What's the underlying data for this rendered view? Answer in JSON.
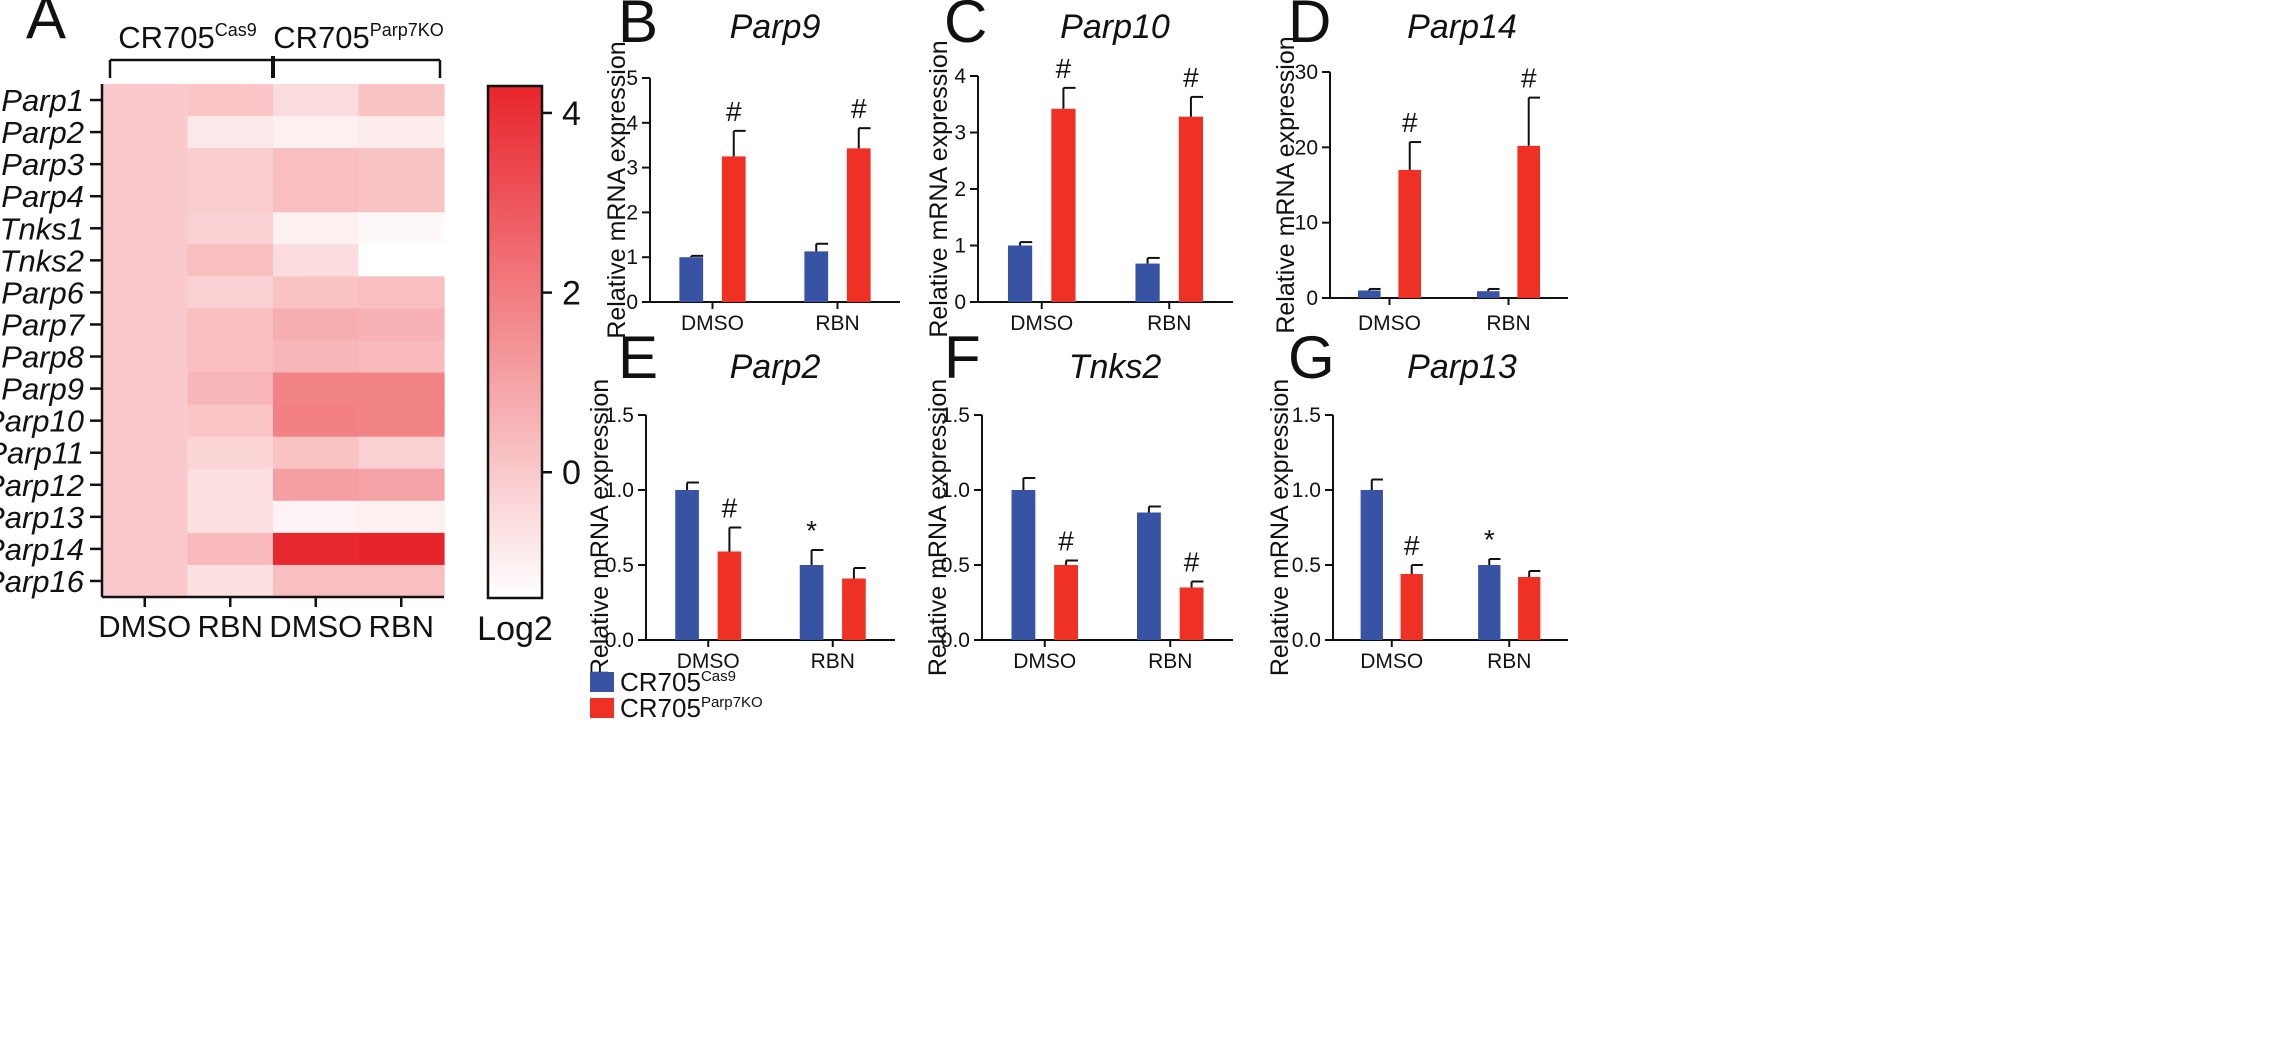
{
  "figure": {
    "colors": {
      "cas9": "#3953a4",
      "ko": "#ee3124",
      "heat_max": "#e8242b"
    }
  },
  "legend": {
    "base": "CR705",
    "sup_cas9": "Cas9",
    "sup_ko": "Parp7KO"
  },
  "chart_data": [
    {
      "type": "heatmap",
      "panel": "A",
      "title": "",
      "group_labels": [
        {
          "base": "CR705",
          "sup": "Cas9"
        },
        {
          "base": "CR705",
          "sup": "Parp7KO"
        }
      ],
      "columns": [
        "DMSO",
        "RBN",
        "DMSO",
        "RBN"
      ],
      "rows": [
        "Parp1",
        "Parp2",
        "Parp3",
        "Parp4",
        "Tnks1",
        "Tnks2",
        "Parp6",
        "Parp7",
        "Parp8",
        "Parp9",
        "Parp10",
        "Parp11",
        "Parp12",
        "Parp13",
        "Parp14",
        "Parp16"
      ],
      "values": [
        [
          0,
          0.1,
          -0.5,
          0.2
        ],
        [
          0,
          -0.8,
          -1.0,
          -0.9
        ],
        [
          0,
          -0.1,
          0.3,
          0.2
        ],
        [
          0,
          -0.1,
          0.3,
          0.2
        ],
        [
          0,
          -0.2,
          -1.0,
          -1.25
        ],
        [
          0,
          0.3,
          -0.5,
          -1.4
        ],
        [
          0,
          -0.2,
          0.2,
          0.3
        ],
        [
          0,
          0.3,
          0.7,
          0.6
        ],
        [
          0,
          0.3,
          0.5,
          0.4
        ],
        [
          0,
          0.5,
          1.8,
          1.8
        ],
        [
          0,
          0.1,
          1.9,
          1.8
        ],
        [
          0,
          -0.3,
          0.2,
          -0.2
        ],
        [
          0,
          -0.6,
          1.1,
          1.0
        ],
        [
          0,
          -0.6,
          -1.1,
          -1.0
        ],
        [
          0,
          0.4,
          4.2,
          4.3
        ],
        [
          0,
          -0.6,
          0.3,
          0.3
        ]
      ],
      "colorbar": {
        "label": "Log2",
        "ticks": [
          0,
          2,
          4
        ],
        "range": [
          -1.4,
          4.3
        ]
      }
    },
    {
      "type": "bar",
      "panel": "B",
      "title": "Parp9",
      "ylabel": "Relative mRNA expression",
      "categories": [
        "DMSO",
        "RBN"
      ],
      "ylim": [
        0,
        5
      ],
      "yticks": [
        "0",
        "1",
        "2",
        "3",
        "4",
        "5"
      ],
      "series": [
        {
          "name": "CR705 Cas9",
          "values": [
            1.0,
            1.13
          ],
          "errors": [
            0.03,
            0.17
          ],
          "marks": [
            "",
            ""
          ]
        },
        {
          "name": "CR705 Parp7KO",
          "values": [
            3.25,
            3.43
          ],
          "errors": [
            0.57,
            0.45
          ],
          "marks": [
            "#",
            "#"
          ]
        }
      ]
    },
    {
      "type": "bar",
      "panel": "C",
      "title": "Parp10",
      "ylabel": "Relative mRNA expression",
      "categories": [
        "DMSO",
        "RBN"
      ],
      "ylim": [
        0,
        4
      ],
      "yticks": [
        "0",
        "1",
        "2",
        "3",
        "4"
      ],
      "series": [
        {
          "name": "CR705 Cas9",
          "values": [
            1.0,
            0.68
          ],
          "errors": [
            0.06,
            0.1
          ],
          "marks": [
            "",
            ""
          ]
        },
        {
          "name": "CR705 Parp7KO",
          "values": [
            3.42,
            3.28
          ],
          "errors": [
            0.37,
            0.35
          ],
          "marks": [
            "#",
            "#"
          ]
        }
      ]
    },
    {
      "type": "bar",
      "panel": "D",
      "title": "Parp14",
      "ylabel": "Relative mRNA expression",
      "categories": [
        "DMSO",
        "RBN"
      ],
      "ylim": [
        0,
        30
      ],
      "yticks": [
        "0",
        "10",
        "20",
        "30"
      ],
      "series": [
        {
          "name": "CR705 Cas9",
          "values": [
            1.0,
            0.9
          ],
          "errors": [
            0.2,
            0.3
          ],
          "marks": [
            "",
            ""
          ]
        },
        {
          "name": "CR705 Parp7KO",
          "values": [
            17.0,
            20.2
          ],
          "errors": [
            3.7,
            6.4
          ],
          "marks": [
            "#",
            "#"
          ]
        }
      ]
    },
    {
      "type": "bar",
      "panel": "E",
      "title": "Parp2",
      "ylabel": "Relative mRNA expression",
      "categories": [
        "DMSO",
        "RBN"
      ],
      "ylim": [
        0,
        1.5
      ],
      "yticks": [
        "0.0",
        "0.5",
        "1.0",
        "1.5"
      ],
      "series": [
        {
          "name": "CR705 Cas9",
          "values": [
            1.0,
            0.5
          ],
          "errors": [
            0.05,
            0.1
          ],
          "marks": [
            "",
            "*"
          ]
        },
        {
          "name": "CR705 Parp7KO",
          "values": [
            0.59,
            0.41
          ],
          "errors": [
            0.16,
            0.07
          ],
          "marks": [
            "#",
            ""
          ]
        }
      ]
    },
    {
      "type": "bar",
      "panel": "F",
      "title": "Tnks2",
      "ylabel": "Relative mRNA expression",
      "categories": [
        "DMSO",
        "RBN"
      ],
      "ylim": [
        0,
        1.5
      ],
      "yticks": [
        "0.0",
        "0.5",
        "1.0",
        "1.5"
      ],
      "series": [
        {
          "name": "CR705 Cas9",
          "values": [
            1.0,
            0.85
          ],
          "errors": [
            0.08,
            0.04
          ],
          "marks": [
            "",
            ""
          ]
        },
        {
          "name": "CR705 Parp7KO",
          "values": [
            0.5,
            0.35
          ],
          "errors": [
            0.03,
            0.04
          ],
          "marks": [
            "#",
            "#"
          ]
        }
      ]
    },
    {
      "type": "bar",
      "panel": "G",
      "title": "Parp13",
      "ylabel": "Relative mRNA expression",
      "categories": [
        "DMSO",
        "RBN"
      ],
      "ylim": [
        0,
        1.5
      ],
      "yticks": [
        "0.0",
        "0.5",
        "1.0",
        "1.5"
      ],
      "series": [
        {
          "name": "CR705 Cas9",
          "values": [
            1.0,
            0.5
          ],
          "errors": [
            0.07,
            0.04
          ],
          "marks": [
            "",
            "*"
          ]
        },
        {
          "name": "CR705 Parp7KO",
          "values": [
            0.44,
            0.42
          ],
          "errors": [
            0.06,
            0.04
          ],
          "marks": [
            "#",
            ""
          ]
        }
      ]
    }
  ]
}
